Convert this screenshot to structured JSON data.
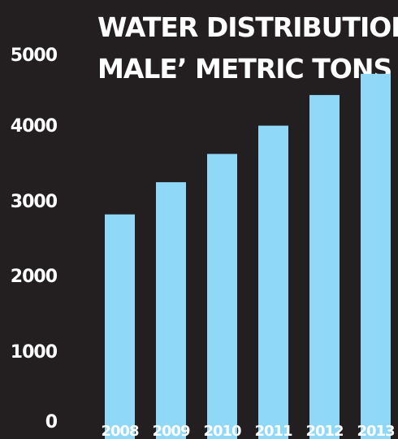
{
  "chart_data": {
    "type": "bar",
    "title_lines": [
      "WATER DISTRIBUTION IN",
      "MALE’ METRIC TONS"
    ],
    "xlabel": "",
    "ylabel": "",
    "categories": [
      "2008",
      "2009",
      "2010",
      "2011",
      "2012",
      "2013"
    ],
    "values": [
      2860,
      3270,
      3630,
      3990,
      4380,
      4650
    ],
    "ylim": [
      0,
      5000
    ],
    "y_ticks": [
      "0",
      "1000",
      "2000",
      "3000",
      "4000",
      "5000"
    ],
    "grid": false,
    "legend": "none",
    "colors": {
      "background": "#231f20",
      "bar": "#8fd8f8",
      "text": "#ffffff"
    }
  }
}
